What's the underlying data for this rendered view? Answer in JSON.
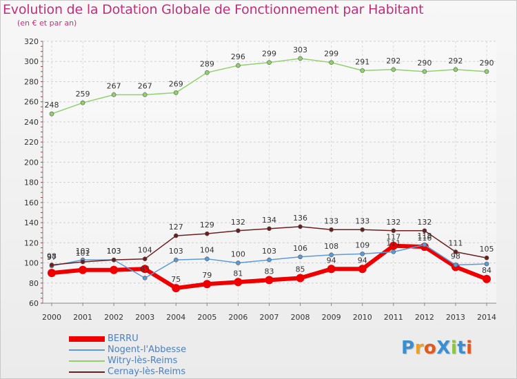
{
  "title": "Evolution de la Dotation Globale de Fonctionnement par Habitant",
  "subtitle": "(en € et par an)",
  "logo": {
    "text": "ProXiti",
    "letters": [
      "P",
      "r",
      "o",
      "X",
      "i",
      "t",
      "i"
    ],
    "colors": [
      "#3a8fd0",
      "#f0a020",
      "#e05a20",
      "#3a8fd0",
      "#8cc63f",
      "#3a8fd0",
      "#e05a20"
    ]
  },
  "chart_data": {
    "type": "line",
    "title": "Evolution de la Dotation Globale de Fonctionnement par Habitant",
    "ylabel": "(en € et par an)",
    "xlabel": "",
    "ylim": [
      60,
      320
    ],
    "yticks": [
      60,
      80,
      100,
      120,
      140,
      160,
      180,
      200,
      220,
      240,
      260,
      280,
      300,
      320
    ],
    "grid": true,
    "x": [
      "2000",
      "2001",
      "2002",
      "2003",
      "2004",
      "2005",
      "2006",
      "2007",
      "2008",
      "2009",
      "2010",
      "2011",
      "2012",
      "2013",
      "2014"
    ],
    "series": [
      {
        "name": "BERRU",
        "color": "#ee0000",
        "values": [
          90,
          93,
          93,
          94,
          75,
          79,
          81,
          83,
          85,
          94,
          94,
          117,
          116,
          96,
          84
        ],
        "labels": [
          "",
          "",
          "",
          "",
          "75",
          "79",
          "81",
          "83",
          "85",
          "94",
          "94",
          "117",
          "116",
          "",
          "84"
        ]
      },
      {
        "name": "Nogent-l'Abbesse",
        "color": "#5b9bd5",
        "values": [
          97,
          103,
          103,
          85,
          103,
          104,
          100,
          103,
          106,
          108,
          109,
          111,
          118,
          98,
          99
        ],
        "labels": [
          "97",
          "103",
          "103",
          "85",
          "103",
          "104",
          "100",
          "103",
          "106",
          "108",
          "109",
          "111",
          "118",
          "98",
          ""
        ]
      },
      {
        "name": "Witry-lès-Reims",
        "color": "#8fd16a",
        "values": [
          248,
          259,
          267,
          267,
          269,
          289,
          296,
          299,
          303,
          299,
          291,
          292,
          290,
          292,
          290
        ],
        "labels": [
          "248",
          "259",
          "267",
          "267",
          "269",
          "289",
          "296",
          "299",
          "303",
          "299",
          "291",
          "292",
          "290",
          "292",
          "290"
        ]
      },
      {
        "name": "Cernay-lès-Reims",
        "color": "#6b1e1e",
        "values": [
          98,
          101,
          103,
          104,
          127,
          129,
          132,
          134,
          136,
          133,
          133,
          132,
          132,
          111,
          105
        ],
        "labels": [
          "98",
          "101",
          "103",
          "104",
          "127",
          "129",
          "132",
          "134",
          "136",
          "133",
          "133",
          "132",
          "132",
          "111",
          "105"
        ]
      }
    ]
  }
}
